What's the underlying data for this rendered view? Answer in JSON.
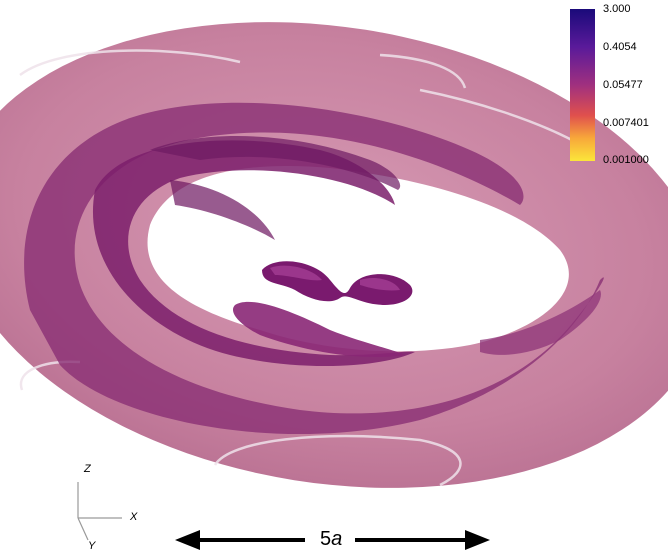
{
  "colorbar": {
    "ticks": [
      "3.000",
      "0.4054",
      "0.05477",
      "0.007401",
      "0.001000"
    ],
    "colors": [
      "#1a0a7a",
      "#5a1a9a",
      "#a0307f",
      "#e0504d",
      "#f8a83a",
      "#fbe63a"
    ]
  },
  "axes": {
    "z": "Z",
    "x": "X",
    "y": "Y"
  },
  "scale_bar": {
    "number": "5",
    "unit": "a"
  },
  "colors": {
    "disk_outer": "#c98aa6",
    "disk_inner": "#8c2e78",
    "core": "#7a1a6e"
  }
}
